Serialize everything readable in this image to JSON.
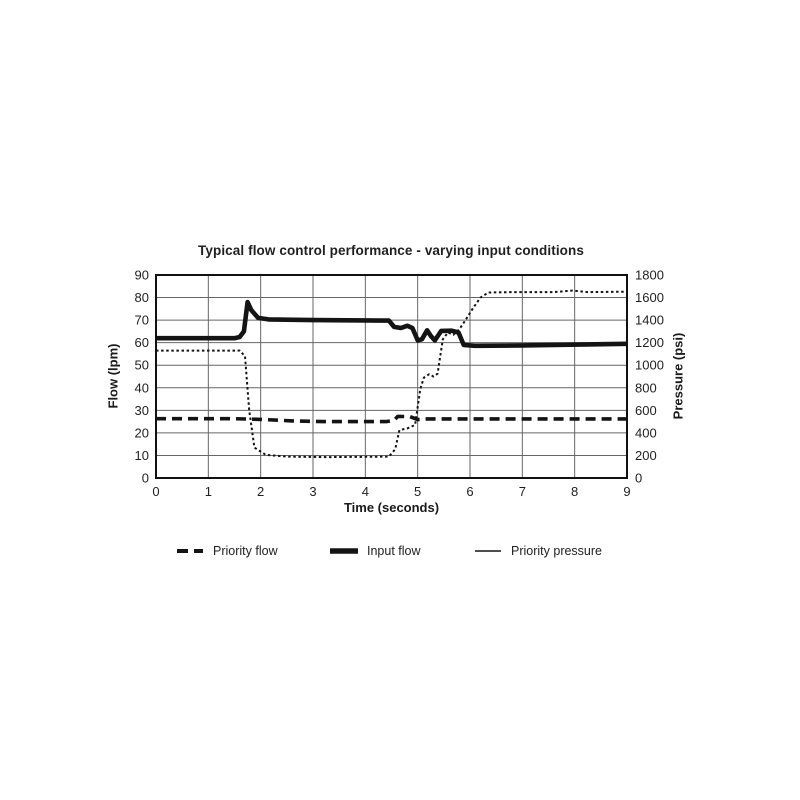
{
  "chart_data": {
    "type": "line",
    "title": "Typical flow control performance - varying input conditions",
    "xlabel": "Time (seconds)",
    "ylabel_left": "Flow (lpm)",
    "ylabel_right": "Pressure (psi)",
    "xlim": [
      0,
      9
    ],
    "ylim_left": [
      0,
      90
    ],
    "ylim_right": [
      0,
      1800
    ],
    "x_ticks": [
      0,
      1,
      2,
      3,
      4,
      5,
      6,
      7,
      8,
      9
    ],
    "y_ticks_left": [
      0,
      10,
      20,
      30,
      40,
      50,
      60,
      70,
      80,
      90
    ],
    "y_ticks_right": [
      0,
      200,
      400,
      600,
      800,
      1000,
      1200,
      1400,
      1600,
      1800
    ],
    "grid": true,
    "legend_position": "bottom",
    "line_color": "#141414",
    "grid_color": "#666666",
    "series": [
      {
        "name": "Priority flow",
        "axis": "left",
        "line_style": "dashed",
        "stroke_width": 3.6,
        "points": [
          [
            0,
            26.3
          ],
          [
            1.5,
            26.3
          ],
          [
            2.0,
            26.0
          ],
          [
            2.6,
            25.3
          ],
          [
            3.2,
            25.0
          ],
          [
            4.4,
            25.0
          ],
          [
            4.55,
            25.6
          ],
          [
            4.62,
            27.3
          ],
          [
            4.85,
            27.2
          ],
          [
            5.0,
            25.9
          ],
          [
            5.15,
            26.2
          ],
          [
            6.0,
            26.2
          ],
          [
            9,
            26.2
          ]
        ]
      },
      {
        "name": "Input flow",
        "axis": "left",
        "line_style": "solid",
        "stroke_width": 4.6,
        "points": [
          [
            0,
            62
          ],
          [
            1.5,
            62
          ],
          [
            1.6,
            62.5
          ],
          [
            1.68,
            65
          ],
          [
            1.75,
            78
          ],
          [
            1.82,
            74.5
          ],
          [
            1.95,
            71
          ],
          [
            2.15,
            70.3
          ],
          [
            3.0,
            70
          ],
          [
            4.45,
            69.8
          ],
          [
            4.55,
            67
          ],
          [
            4.68,
            66.5
          ],
          [
            4.8,
            67.5
          ],
          [
            4.9,
            66.5
          ],
          [
            5.0,
            61
          ],
          [
            5.08,
            61.5
          ],
          [
            5.18,
            65.5
          ],
          [
            5.25,
            63
          ],
          [
            5.33,
            61
          ],
          [
            5.45,
            65.2
          ],
          [
            5.65,
            65.3
          ],
          [
            5.78,
            64.5
          ],
          [
            5.88,
            59
          ],
          [
            6.1,
            58.6
          ],
          [
            7.0,
            58.8
          ],
          [
            9,
            59.5
          ]
        ]
      },
      {
        "name": "Priority pressure",
        "axis": "right",
        "line_style": "dotted",
        "stroke_width": 2.0,
        "points": [
          [
            0,
            1130
          ],
          [
            1.6,
            1130
          ],
          [
            1.7,
            1080
          ],
          [
            1.78,
            600
          ],
          [
            1.88,
            270
          ],
          [
            2.1,
            205
          ],
          [
            2.5,
            190
          ],
          [
            3.3,
            185
          ],
          [
            4.45,
            190
          ],
          [
            4.57,
            255
          ],
          [
            4.65,
            425
          ],
          [
            4.8,
            440
          ],
          [
            4.95,
            470
          ],
          [
            5.05,
            790
          ],
          [
            5.12,
            890
          ],
          [
            5.22,
            920
          ],
          [
            5.3,
            900
          ],
          [
            5.38,
            925
          ],
          [
            5.48,
            1230
          ],
          [
            5.58,
            1290
          ],
          [
            5.68,
            1270
          ],
          [
            5.8,
            1320
          ],
          [
            5.9,
            1390
          ],
          [
            6.05,
            1500
          ],
          [
            6.2,
            1600
          ],
          [
            6.35,
            1645
          ],
          [
            6.8,
            1648
          ],
          [
            7.6,
            1648
          ],
          [
            7.95,
            1662
          ],
          [
            8.25,
            1648
          ],
          [
            9,
            1652
          ]
        ]
      }
    ]
  },
  "legend": {
    "items": [
      {
        "label": "Priority flow"
      },
      {
        "label": "Input flow"
      },
      {
        "label": "Priority pressure"
      }
    ]
  }
}
